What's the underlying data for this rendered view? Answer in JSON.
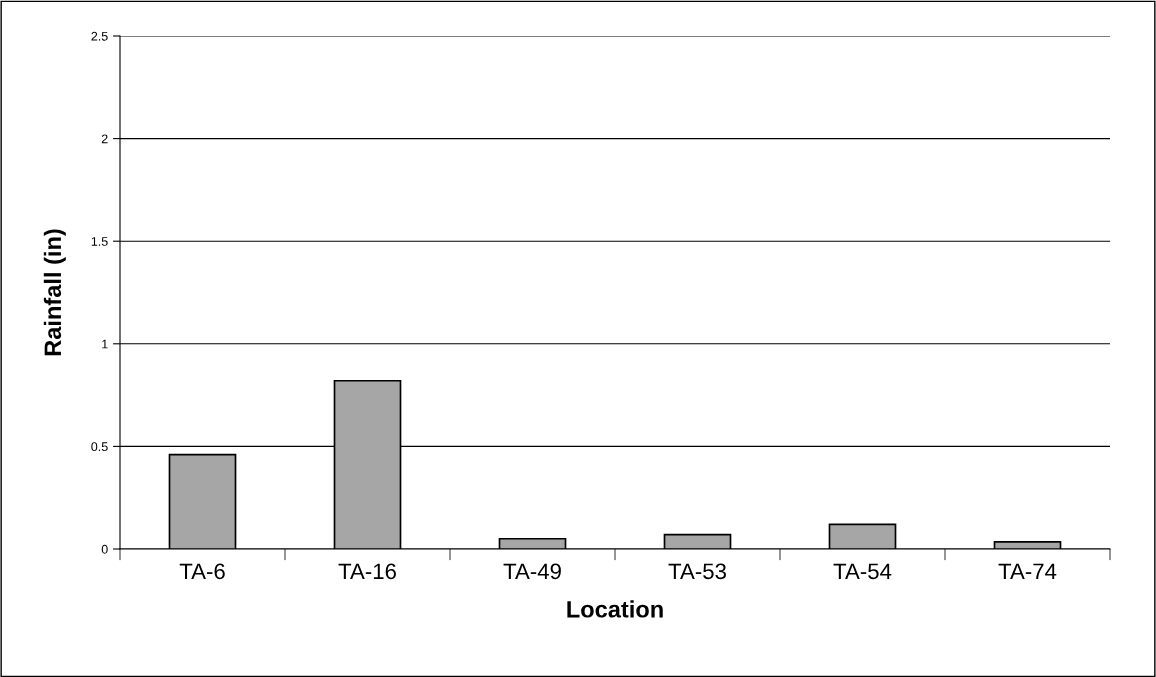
{
  "chart_data": {
    "type": "bar",
    "xlabel": "Location",
    "ylabel": "Rainfall (in)",
    "categories": [
      "TA-6",
      "TA-16",
      "TA-49",
      "TA-53",
      "TA-54",
      "TA-74"
    ],
    "values": [
      0.46,
      0.82,
      0.05,
      0.07,
      0.12,
      0.035
    ],
    "color": "#a6a6a6",
    "ylim": [
      0,
      2.5
    ],
    "yticks": [
      0,
      0.5,
      1,
      1.5,
      2,
      2.5
    ],
    "grid": "y"
  }
}
